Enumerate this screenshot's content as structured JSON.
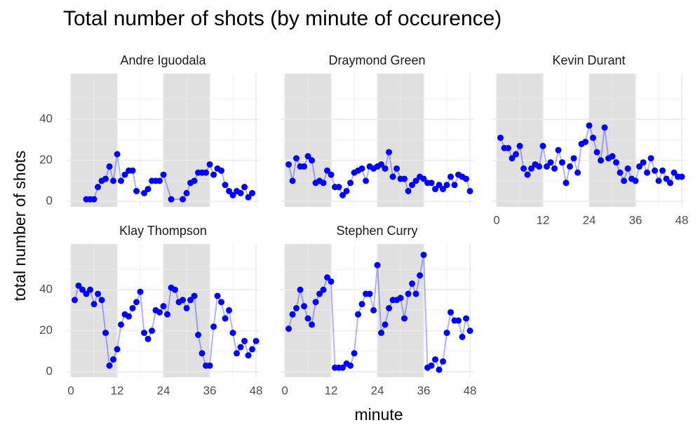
{
  "chart_data": {
    "type": "scatter",
    "title": "Total number of shots (by minute of occurence)",
    "xlabel": "minute",
    "ylabel": "total number of shots",
    "xlim": [
      -1.1,
      48.9
    ],
    "ylim": [
      -2.7,
      62.3
    ],
    "xticks": [
      0,
      12,
      24,
      36,
      48
    ],
    "yticks": [
      0,
      20,
      40
    ],
    "minor_xticks": [
      6,
      18,
      30,
      42
    ],
    "minor_yticks": [
      10,
      30,
      50
    ],
    "shaded_intervals": [
      [
        0,
        12
      ],
      [
        24,
        36
      ]
    ],
    "shade_color": "#e0e0e0",
    "grid": true,
    "series": [
      {
        "name": "Andre Iguodala",
        "color": "#0000ff",
        "x": [
          4,
          5,
          6,
          7,
          8,
          9,
          10,
          11,
          12,
          13,
          14,
          15,
          16,
          17,
          19,
          20,
          21,
          22,
          23,
          24,
          26,
          29,
          30,
          31,
          32,
          33,
          34,
          35,
          36,
          37,
          38,
          39,
          40,
          41,
          42,
          43,
          44,
          45,
          46,
          47
        ],
        "values": [
          1,
          1,
          1,
          7,
          10,
          11,
          17,
          10,
          23,
          10,
          13,
          15,
          15,
          5,
          4,
          6,
          10,
          10,
          10,
          13,
          1,
          1,
          4,
          9,
          10,
          14,
          14,
          14,
          18,
          13,
          16,
          15,
          8,
          5,
          3,
          5,
          4,
          7,
          2,
          4
        ]
      },
      {
        "name": "Draymond Green",
        "color": "#0000ff",
        "x": [
          1,
          2,
          3,
          4,
          5,
          6,
          7,
          8,
          9,
          10,
          11,
          12,
          13,
          14,
          15,
          16,
          17,
          18,
          19,
          20,
          21,
          22,
          23,
          24,
          25,
          26,
          27,
          28,
          29,
          30,
          31,
          32,
          33,
          34,
          35,
          36,
          37,
          38,
          39,
          40,
          41,
          42,
          43,
          44,
          45,
          46,
          47,
          48
        ],
        "values": [
          18,
          10,
          21,
          17,
          17,
          22,
          20,
          9,
          10,
          9,
          15,
          13,
          7,
          7,
          3,
          5,
          9,
          14,
          15,
          16,
          10,
          17,
          16,
          17,
          18,
          16,
          24,
          12,
          16,
          11,
          11,
          5,
          8,
          10,
          12,
          11,
          9,
          9,
          6,
          8,
          6,
          8,
          12,
          8,
          13,
          12,
          11,
          5
        ]
      },
      {
        "name": "Kevin Durant",
        "color": "#0000ff",
        "x": [
          1,
          2,
          3,
          4,
          5,
          6,
          7,
          8,
          9,
          10,
          11,
          12,
          13,
          14,
          15,
          16,
          17,
          18,
          19,
          20,
          21,
          22,
          23,
          24,
          25,
          26,
          27,
          28,
          29,
          30,
          31,
          32,
          33,
          34,
          35,
          36,
          37,
          38,
          39,
          40,
          41,
          42,
          43,
          44,
          45,
          46,
          47,
          48
        ],
        "values": [
          31,
          26,
          26,
          21,
          23,
          27,
          16,
          13,
          16,
          18,
          17,
          27,
          17,
          19,
          16,
          25,
          19,
          9,
          17,
          21,
          14,
          28,
          29,
          37,
          31,
          24,
          20,
          36,
          21,
          22,
          19,
          14,
          10,
          16,
          11,
          10,
          17,
          19,
          14,
          21,
          15,
          10,
          15,
          11,
          9,
          14,
          12,
          12
        ]
      },
      {
        "name": "Klay Thompson",
        "color": "#0000ff",
        "x": [
          1,
          2,
          3,
          4,
          5,
          6,
          7,
          8,
          9,
          10,
          11,
          12,
          13,
          14,
          15,
          16,
          17,
          18,
          19,
          20,
          21,
          22,
          23,
          24,
          25,
          26,
          27,
          28,
          29,
          30,
          31,
          32,
          33,
          34,
          35,
          36,
          37,
          38,
          39,
          40,
          41,
          42,
          43,
          44,
          45,
          46,
          47,
          48
        ],
        "values": [
          35,
          42,
          40,
          38,
          40,
          33,
          38,
          35,
          19,
          3,
          6,
          11,
          23,
          28,
          27,
          31,
          34,
          39,
          19,
          16,
          20,
          30,
          29,
          32,
          28,
          41,
          40,
          34,
          35,
          31,
          35,
          37,
          18,
          9,
          3,
          3,
          22,
          37,
          34,
          26,
          30,
          19,
          9,
          12,
          15,
          8,
          11,
          15
        ]
      },
      {
        "name": "Stephen Curry",
        "color": "#0000ff",
        "x": [
          1,
          2,
          3,
          4,
          5,
          6,
          7,
          8,
          9,
          10,
          11,
          12,
          13,
          14,
          15,
          16,
          17,
          18,
          19,
          20,
          21,
          22,
          23,
          24,
          25,
          26,
          27,
          28,
          29,
          30,
          31,
          32,
          33,
          34,
          35,
          36,
          37,
          38,
          39,
          40,
          41,
          42,
          43,
          44,
          45,
          46,
          47,
          48
        ],
        "values": [
          21,
          28,
          31,
          40,
          32,
          26,
          23,
          34,
          38,
          40,
          46,
          44,
          2,
          2,
          2,
          4,
          3,
          9,
          28,
          33,
          38,
          38,
          30,
          52,
          19,
          23,
          31,
          35,
          35,
          36,
          26,
          38,
          43,
          38,
          47,
          57,
          2,
          3,
          6,
          1,
          5,
          19,
          29,
          25,
          25,
          17,
          26,
          20
        ]
      }
    ]
  }
}
